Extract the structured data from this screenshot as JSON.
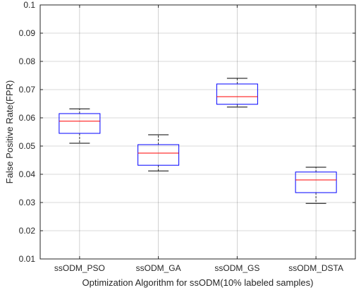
{
  "chart_data": {
    "type": "box",
    "xlabel": "Optimization Algorithm for ssODM(10% labeled samples)",
    "ylabel": "False Positive Rate(FPR)",
    "ylim": [
      0.01,
      0.1
    ],
    "yticks": [
      0.01,
      0.02,
      0.03,
      0.04,
      0.05,
      0.06,
      0.07,
      0.08,
      0.09,
      0.1
    ],
    "ytick_labels": [
      "0.01",
      "0.02",
      "0.03",
      "0.04",
      "0.05",
      "0.06",
      "0.07",
      "0.08",
      "0.09",
      "0.1"
    ],
    "grid": true,
    "categories": [
      "ssODM_PSO",
      "ssODM_GA",
      "ssODM_GS",
      "ssODM_DSTA"
    ],
    "boxes": [
      {
        "min": 0.051,
        "q1": 0.0545,
        "median": 0.0588,
        "q3": 0.0615,
        "max": 0.0632
      },
      {
        "min": 0.0412,
        "q1": 0.0432,
        "median": 0.0475,
        "q3": 0.0505,
        "max": 0.054
      },
      {
        "min": 0.0638,
        "q1": 0.0648,
        "median": 0.0675,
        "q3": 0.072,
        "max": 0.074
      },
      {
        "min": 0.0297,
        "q1": 0.0335,
        "median": 0.038,
        "q3": 0.0408,
        "max": 0.0425
      }
    ],
    "colors": {
      "box": "#0000ff",
      "median": "#ff0000",
      "whisker": "#000000",
      "grid": "#262626",
      "axis": "#262626"
    }
  }
}
